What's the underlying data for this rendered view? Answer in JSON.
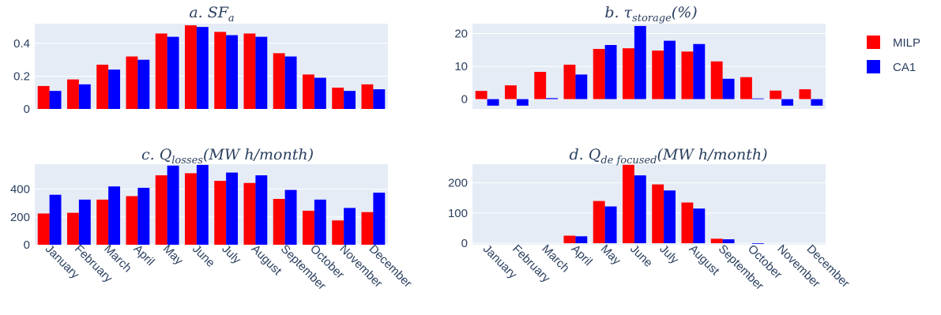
{
  "colors": {
    "MILP": "#ff0000",
    "CA1": "#0000ff",
    "plot_bg": "#e5ecf6",
    "grid": "#ffffff",
    "text": "#2a3f5f"
  },
  "legend": [
    {
      "name": "MILP",
      "color": "#ff0000"
    },
    {
      "name": "CA1",
      "color": "#0000ff"
    }
  ],
  "chart_data": [
    {
      "type": "bar",
      "title": "a. SF_a",
      "title_prefix": "a.",
      "title_main": "SF",
      "title_sub": "a",
      "title_suffix": "",
      "categories": [
        "January",
        "February",
        "March",
        "April",
        "May",
        "June",
        "July",
        "August",
        "September",
        "October",
        "November",
        "December"
      ],
      "series": [
        {
          "name": "MILP",
          "values": [
            0.14,
            0.18,
            0.27,
            0.32,
            0.46,
            0.51,
            0.47,
            0.46,
            0.34,
            0.21,
            0.13,
            0.15
          ]
        },
        {
          "name": "CA1",
          "values": [
            0.11,
            0.15,
            0.24,
            0.3,
            0.44,
            0.5,
            0.45,
            0.44,
            0.32,
            0.19,
            0.11,
            0.12
          ]
        }
      ],
      "ylim": [
        0,
        0.52
      ],
      "yticks": [
        0,
        0.2,
        0.4
      ],
      "yticklabels": [
        "0",
        "0.2",
        "0.4"
      ],
      "show_xticklabels": false
    },
    {
      "type": "bar",
      "title": "b. τ_storage(%)",
      "title_prefix": "b.",
      "title_main": "τ",
      "title_sub": "storage",
      "title_suffix": "(%)",
      "categories": [
        "January",
        "February",
        "March",
        "April",
        "May",
        "June",
        "July",
        "August",
        "September",
        "October",
        "November",
        "December"
      ],
      "series": [
        {
          "name": "MILP",
          "values": [
            2.5,
            4.2,
            8.3,
            10.5,
            15.3,
            15.5,
            14.8,
            14.5,
            11.5,
            6.7,
            2.6,
            3.0
          ]
        },
        {
          "name": "CA1",
          "values": [
            -2.0,
            -2.0,
            0.3,
            7.5,
            16.5,
            22.3,
            17.8,
            16.8,
            6.2,
            0.2,
            -2.0,
            -2.0
          ]
        }
      ],
      "ylim": [
        -3,
        23
      ],
      "yticks": [
        0,
        10,
        20
      ],
      "yticklabels": [
        "0",
        "10",
        "20"
      ],
      "show_xticklabels": false
    },
    {
      "type": "bar",
      "title": "c. Q_losses(MWh/month)",
      "title_prefix": "c.",
      "title_main": "Q",
      "title_sub": "losses",
      "title_suffix": "(MW h/month)",
      "categories": [
        "January",
        "February",
        "March",
        "April",
        "May",
        "June",
        "July",
        "August",
        "September",
        "October",
        "November",
        "December"
      ],
      "series": [
        {
          "name": "MILP",
          "values": [
            225,
            230,
            325,
            350,
            500,
            515,
            460,
            445,
            330,
            245,
            175,
            235
          ]
        },
        {
          "name": "CA1",
          "values": [
            360,
            325,
            420,
            410,
            570,
            575,
            520,
            500,
            395,
            325,
            265,
            375
          ]
        }
      ],
      "ylim": [
        0,
        580
      ],
      "yticks": [
        0,
        200,
        400
      ],
      "yticklabels": [
        "0",
        "200",
        "400"
      ],
      "show_xticklabels": true
    },
    {
      "type": "bar",
      "title": "d. Q_defocused(MWh/month)",
      "title_prefix": "d.",
      "title_main": "Q",
      "title_sub": "de focused",
      "title_suffix": "(MW h/month)",
      "categories": [
        "January",
        "February",
        "March",
        "April",
        "May",
        "June",
        "July",
        "August",
        "September",
        "October",
        "November",
        "December"
      ],
      "series": [
        {
          "name": "MILP",
          "values": [
            0,
            0,
            0,
            25,
            140,
            260,
            195,
            135,
            15,
            0,
            0,
            0
          ]
        },
        {
          "name": "CA1",
          "values": [
            0,
            0,
            0,
            23,
            122,
            225,
            175,
            115,
            13,
            -2,
            0,
            0
          ]
        }
      ],
      "ylim": [
        -5,
        262
      ],
      "yticks": [
        0,
        100,
        200
      ],
      "yticklabels": [
        "0",
        "100",
        "200"
      ],
      "show_xticklabels": true
    }
  ]
}
